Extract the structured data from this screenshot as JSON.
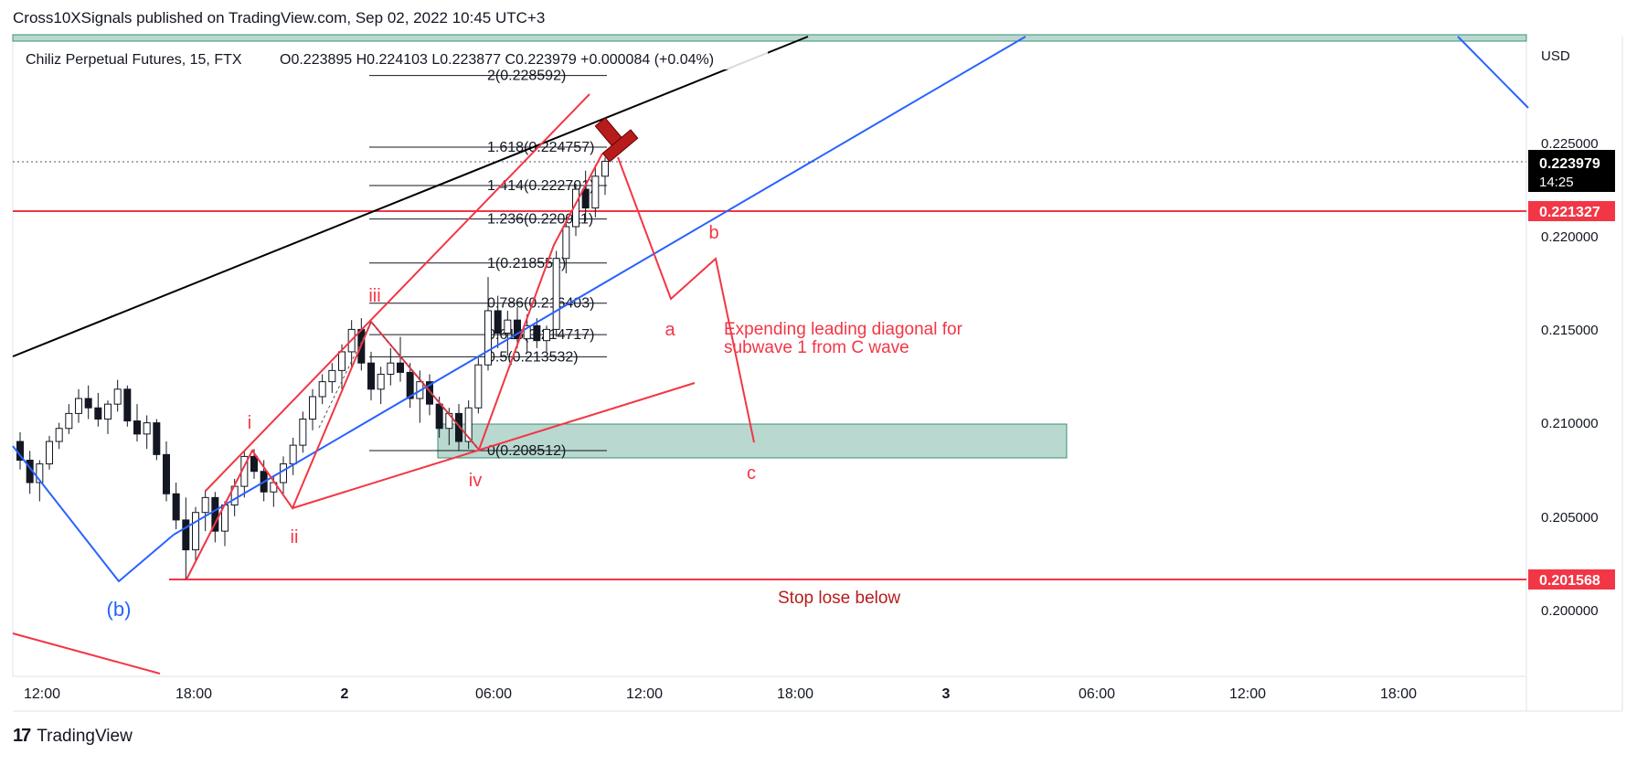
{
  "header": {
    "published": "Cross10XSignals published on TradingView.com, Sep 02, 2022 10:45 UTC+3"
  },
  "legend": {
    "symbol": "Chiliz Perpetual Futures, 15, FTX",
    "ohlc": "O0.223895   H0.224103   L0.223877   C0.223979   +0.000084 (+0.04%)"
  },
  "price_axis": {
    "currency": "USD",
    "ticks": [
      "0.225000",
      "0.220000",
      "0.215000",
      "0.210000",
      "0.205000",
      "0.200000"
    ],
    "current_price": "0.223979",
    "countdown": "14:25",
    "level_upper": "0.221327",
    "level_lower": "0.201568"
  },
  "time_axis": {
    "ticks": [
      "12:00",
      "18:00",
      "2",
      "06:00",
      "12:00",
      "18:00",
      "3",
      "06:00",
      "12:00",
      "18:00"
    ]
  },
  "fib_levels": [
    {
      "label": "2(0.228592)",
      "price": 0.228592
    },
    {
      "label": "1.618(0.224757)",
      "price": 0.224757
    },
    {
      "label": "1.414(0.222701)",
      "price": 0.222701
    },
    {
      "label": "1.236(0.220911)",
      "price": 0.220911
    },
    {
      "label": "1(0.218552)",
      "price": 0.218552
    },
    {
      "label": "0.786(0.216403)",
      "price": 0.216403
    },
    {
      "label": "0.618(0.214717)",
      "price": 0.214717
    },
    {
      "label": "0.5(0.213532)",
      "price": 0.213532
    },
    {
      "label": "0(0.208512)",
      "price": 0.208512
    }
  ],
  "waves": {
    "i": "i",
    "ii": "ii",
    "iii": "iii",
    "iv": "iv",
    "b_big": "(b)",
    "a": "a",
    "b": "b",
    "c": "c"
  },
  "annotations": {
    "diagonal_line1": "Expending leading diagonal for",
    "diagonal_line2": "subwave 1 from C wave",
    "stop": "Stop lose below"
  },
  "footer": {
    "brand": "TradingView",
    "logo": "17"
  },
  "colors": {
    "red": "#f23645",
    "blue": "#2962ff",
    "black": "#000000",
    "zone": "#b9d8cf",
    "zone_border": "#3d8f78",
    "dark_red": "#8b0000"
  },
  "chart_data": {
    "type": "candlestick",
    "title": "Chiliz Perpetual Futures, 15, FTX",
    "ylim": [
      0.1985,
      0.2265
    ],
    "x_ticks": [
      "12:00",
      "18:00",
      "2",
      "06:00",
      "12:00",
      "18:00",
      "3",
      "06:00",
      "12:00",
      "18:00"
    ],
    "candles": [
      [
        0.209,
        0.2095,
        0.2075,
        0.208
      ],
      [
        0.208,
        0.2085,
        0.2062,
        0.2068
      ],
      [
        0.2068,
        0.208,
        0.2058,
        0.2078
      ],
      [
        0.2078,
        0.2093,
        0.2075,
        0.209
      ],
      [
        0.209,
        0.21,
        0.2086,
        0.2097
      ],
      [
        0.2097,
        0.211,
        0.2094,
        0.2105
      ],
      [
        0.2105,
        0.2118,
        0.21,
        0.2113
      ],
      [
        0.2113,
        0.212,
        0.2102,
        0.2108
      ],
      [
        0.2108,
        0.2116,
        0.2098,
        0.2102
      ],
      [
        0.2102,
        0.2112,
        0.2094,
        0.211
      ],
      [
        0.211,
        0.2123,
        0.2106,
        0.2118
      ],
      [
        0.2118,
        0.212,
        0.2098,
        0.2101
      ],
      [
        0.2101,
        0.211,
        0.209,
        0.2094
      ],
      [
        0.2094,
        0.2104,
        0.2086,
        0.21
      ],
      [
        0.21,
        0.2102,
        0.208,
        0.2083
      ],
      [
        0.2083,
        0.209,
        0.2058,
        0.2062
      ],
      [
        0.2062,
        0.2068,
        0.2043,
        0.2048
      ],
      [
        0.2048,
        0.206,
        0.2016,
        0.2032
      ],
      [
        0.2032,
        0.2055,
        0.2025,
        0.2052
      ],
      [
        0.2052,
        0.2064,
        0.2042,
        0.206
      ],
      [
        0.206,
        0.2063,
        0.2036,
        0.2042
      ],
      [
        0.2042,
        0.2058,
        0.2034,
        0.2056
      ],
      [
        0.2056,
        0.207,
        0.205,
        0.2066
      ],
      [
        0.2066,
        0.2085,
        0.206,
        0.2082
      ],
      [
        0.2082,
        0.2086,
        0.207,
        0.2074
      ],
      [
        0.2074,
        0.208,
        0.2058,
        0.2063
      ],
      [
        0.2063,
        0.2072,
        0.2055,
        0.2068
      ],
      [
        0.2068,
        0.2082,
        0.2062,
        0.2078
      ],
      [
        0.2078,
        0.2092,
        0.2072,
        0.2088
      ],
      [
        0.2088,
        0.2106,
        0.2084,
        0.2102
      ],
      [
        0.2102,
        0.2118,
        0.2096,
        0.2114
      ],
      [
        0.2114,
        0.2126,
        0.211,
        0.2122
      ],
      [
        0.2122,
        0.2132,
        0.2116,
        0.2128
      ],
      [
        0.2128,
        0.2142,
        0.2118,
        0.2138
      ],
      [
        0.2138,
        0.2155,
        0.213,
        0.215
      ],
      [
        0.215,
        0.2156,
        0.2128,
        0.2132
      ],
      [
        0.2132,
        0.2138,
        0.2112,
        0.2118
      ],
      [
        0.2118,
        0.213,
        0.211,
        0.2126
      ],
      [
        0.2126,
        0.214,
        0.212,
        0.2132
      ],
      [
        0.2132,
        0.2146,
        0.2122,
        0.2127
      ],
      [
        0.2127,
        0.2132,
        0.2108,
        0.2113
      ],
      [
        0.2113,
        0.2128,
        0.21,
        0.2122
      ],
      [
        0.2122,
        0.2126,
        0.2104,
        0.211
      ],
      [
        0.211,
        0.2114,
        0.2092,
        0.2097
      ],
      [
        0.2097,
        0.2108,
        0.2088,
        0.2105
      ],
      [
        0.2105,
        0.211,
        0.2085,
        0.209
      ],
      [
        0.209,
        0.2112,
        0.2086,
        0.2108
      ],
      [
        0.2108,
        0.2135,
        0.2105,
        0.2131
      ],
      [
        0.2131,
        0.2178,
        0.2128,
        0.216
      ],
      [
        0.216,
        0.2168,
        0.214,
        0.2148
      ],
      [
        0.2148,
        0.216,
        0.2136,
        0.2155
      ],
      [
        0.2155,
        0.2162,
        0.214,
        0.2145
      ],
      [
        0.2145,
        0.2158,
        0.2138,
        0.2152
      ],
      [
        0.2152,
        0.2156,
        0.214,
        0.2144
      ],
      [
        0.2144,
        0.2152,
        0.2138,
        0.215
      ],
      [
        0.215,
        0.2192,
        0.2146,
        0.2188
      ],
      [
        0.2188,
        0.221,
        0.218,
        0.2205
      ],
      [
        0.2205,
        0.2228,
        0.22,
        0.2225
      ],
      [
        0.2225,
        0.2235,
        0.2208,
        0.2215
      ],
      [
        0.2215,
        0.2238,
        0.221,
        0.2232
      ],
      [
        0.2232,
        0.2242,
        0.2222,
        0.224
      ]
    ],
    "horizontal_levels": [
      0.221327,
      0.201568
    ],
    "labels": [
      "i",
      "ii",
      "iii",
      "iv",
      "(b)",
      "a",
      "b",
      "c"
    ]
  }
}
